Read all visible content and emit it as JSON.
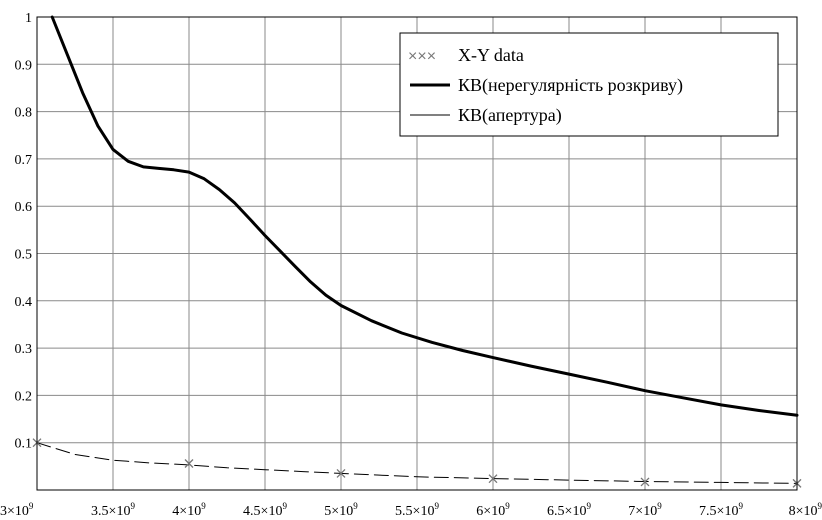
{
  "chart_data": {
    "type": "line",
    "xlim": [
      3000000000,
      8000000000
    ],
    "ylim": [
      0,
      1
    ],
    "grid": true,
    "legend_position": "top-right",
    "x_ticks": [
      {
        "value": 3000000000,
        "mant": "3",
        "exp": "9"
      },
      {
        "value": 3500000000,
        "mant": "3.5",
        "exp": "9"
      },
      {
        "value": 4000000000,
        "mant": "4",
        "exp": "9"
      },
      {
        "value": 4500000000,
        "mant": "4.5",
        "exp": "9"
      },
      {
        "value": 5000000000,
        "mant": "5",
        "exp": "9"
      },
      {
        "value": 5500000000,
        "mant": "5.5",
        "exp": "9"
      },
      {
        "value": 6000000000,
        "mant": "6",
        "exp": "9"
      },
      {
        "value": 6500000000,
        "mant": "6.5",
        "exp": "9"
      },
      {
        "value": 7000000000,
        "mant": "7",
        "exp": "9"
      },
      {
        "value": 7500000000,
        "mant": "7.5",
        "exp": "9"
      },
      {
        "value": 8000000000,
        "mant": "8",
        "exp": "9"
      }
    ],
    "y_ticks": [
      {
        "value": 0.1,
        "label": "0.1"
      },
      {
        "value": 0.2,
        "label": "0.2"
      },
      {
        "value": 0.3,
        "label": "0.3"
      },
      {
        "value": 0.4,
        "label": "0.4"
      },
      {
        "value": 0.5,
        "label": "0.5"
      },
      {
        "value": 0.6,
        "label": "0.6"
      },
      {
        "value": 0.7,
        "label": "0.7"
      },
      {
        "value": 0.8,
        "label": "0.8"
      },
      {
        "value": 0.9,
        "label": "0.9"
      },
      {
        "value": 1.0,
        "label": "1"
      }
    ],
    "legend": [
      {
        "label": "X-Y data",
        "marker": "×××",
        "style": "markers",
        "color": "#777777"
      },
      {
        "label": "КВ(нерегулярність розкриву)",
        "style": "solid-thick",
        "color": "#000000"
      },
      {
        "label": "КВ(апертура)",
        "style": "dashed-thin",
        "color": "#000000"
      }
    ],
    "series": [
      {
        "name": "КВ(нерегулярність розкриву)",
        "style": "solid-thick",
        "color": "#000000",
        "x": [
          3100000000,
          3200000000,
          3300000000,
          3400000000,
          3500000000,
          3600000000,
          3700000000,
          3800000000,
          3900000000,
          4000000000,
          4100000000,
          4200000000,
          4300000000,
          4400000000,
          4500000000,
          4600000000,
          4700000000,
          4800000000,
          4900000000,
          5000000000,
          5200000000,
          5400000000,
          5600000000,
          5800000000,
          6000000000,
          6250000000,
          6500000000,
          6750000000,
          7000000000,
          7250000000,
          7500000000,
          7750000000,
          8000000000
        ],
        "y": [
          1.0,
          0.92,
          0.84,
          0.77,
          0.72,
          0.695,
          0.683,
          0.68,
          0.677,
          0.672,
          0.658,
          0.635,
          0.607,
          0.573,
          0.538,
          0.505,
          0.472,
          0.44,
          0.412,
          0.39,
          0.358,
          0.332,
          0.312,
          0.295,
          0.28,
          0.262,
          0.245,
          0.228,
          0.21,
          0.195,
          0.18,
          0.168,
          0.158
        ]
      },
      {
        "name": "КВ(апертура)",
        "style": "dashed-thin",
        "color": "#000000",
        "x": [
          3000000000,
          3250000000,
          3500000000,
          3750000000,
          4000000000,
          4250000000,
          4500000000,
          4750000000,
          5000000000,
          5500000000,
          6000000000,
          6500000000,
          7000000000,
          7500000000,
          8000000000
        ],
        "y": [
          0.1,
          0.075,
          0.063,
          0.057,
          0.053,
          0.047,
          0.043,
          0.039,
          0.035,
          0.028,
          0.024,
          0.021,
          0.018,
          0.016,
          0.014
        ]
      },
      {
        "name": "X-Y data",
        "style": "markers",
        "color": "#777777",
        "x": [
          3000000000,
          4000000000,
          5000000000,
          6000000000,
          7000000000,
          8000000000
        ],
        "y": [
          0.1,
          0.056,
          0.035,
          0.024,
          0.017,
          0.014
        ]
      }
    ]
  }
}
